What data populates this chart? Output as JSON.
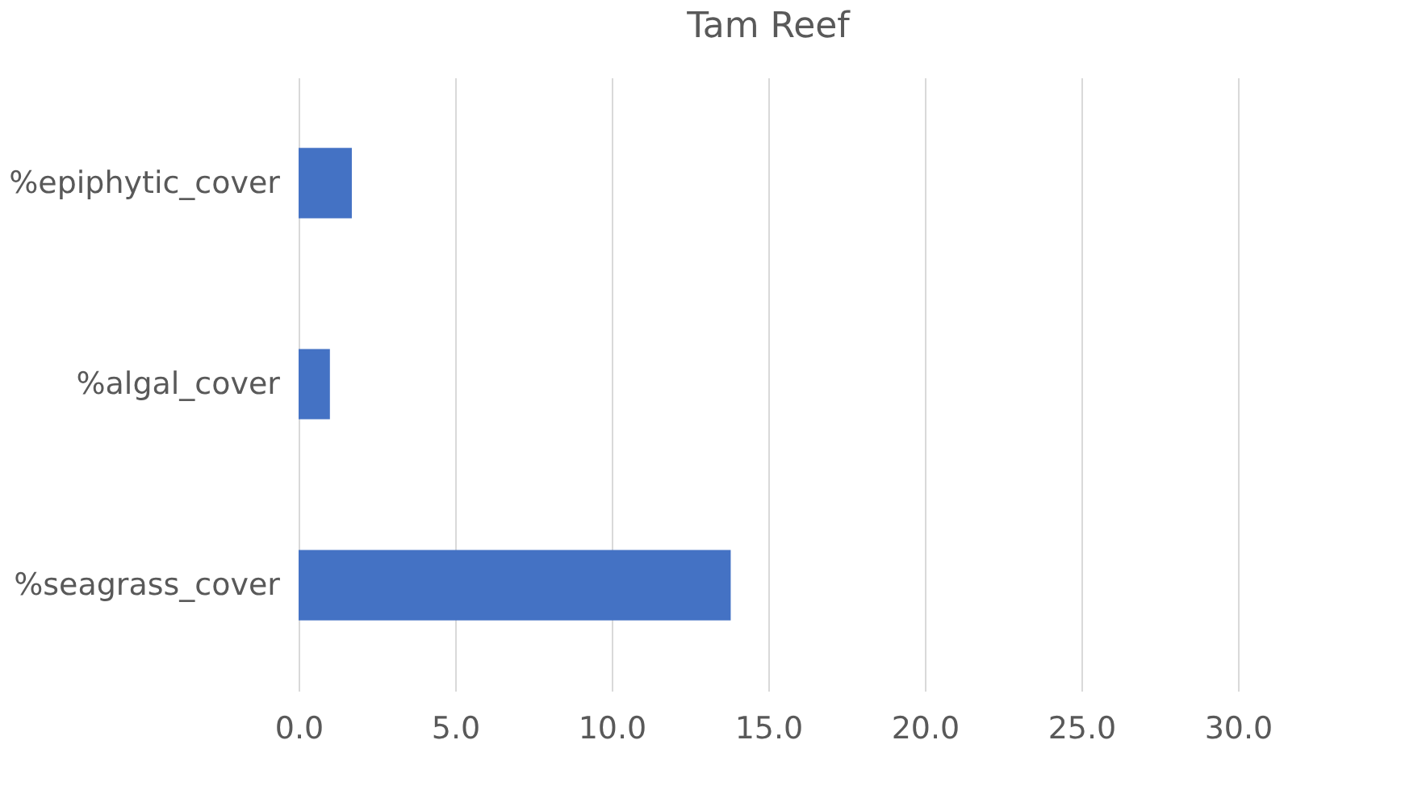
{
  "chart_data": {
    "type": "bar",
    "orientation": "horizontal",
    "title": "Tam Reef",
    "categories": [
      "%epiphytic_cover",
      "%algal_cover",
      "%seagrass_cover"
    ],
    "values": [
      1.7,
      1.0,
      13.8
    ],
    "color": "#4472c4",
    "xlim": [
      0,
      30
    ],
    "xticks": [
      {
        "value": 0,
        "label": "0.0"
      },
      {
        "value": 5,
        "label": "5.0"
      },
      {
        "value": 10,
        "label": "10.0"
      },
      {
        "value": 15,
        "label": "15.0"
      },
      {
        "value": 20,
        "label": "20.0"
      },
      {
        "value": 25,
        "label": "25.0"
      },
      {
        "value": 30,
        "label": "30.0"
      }
    ],
    "grid": "x"
  }
}
